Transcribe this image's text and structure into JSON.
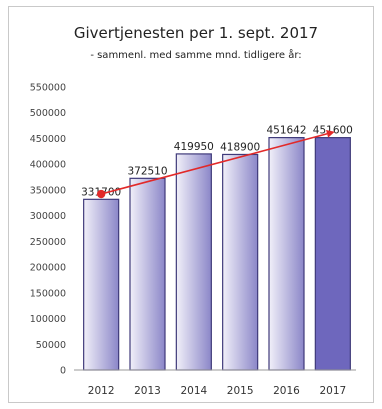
{
  "chart_data": {
    "type": "bar",
    "title": "Givertjenesten per 1. sept. 2017",
    "subtitle": "- sammenl. med samme mnd. tidligere år:",
    "categories": [
      "2012",
      "2013",
      "2014",
      "2015",
      "2016",
      "2017"
    ],
    "values": [
      331700,
      372510,
      419950,
      418900,
      451642,
      451600
    ],
    "data_labels": [
      "331700",
      "372510",
      "419950",
      "418900",
      "451642",
      "451600"
    ],
    "yticks": [
      "0",
      "50000",
      "100000",
      "150000",
      "200000",
      "250000",
      "300000",
      "350000",
      "400000",
      "450000",
      "500000",
      "550000"
    ],
    "ylim": [
      0,
      550000
    ],
    "trendline": {
      "from": 342000,
      "to": 462000
    },
    "grid": false,
    "colors": {
      "bar_light": "#f1f0f9",
      "bar_dark": "#8b86c8",
      "bar_last": "#6e67bd",
      "bar_stroke": "#3f3a7a",
      "trend": "#e22929"
    }
  }
}
